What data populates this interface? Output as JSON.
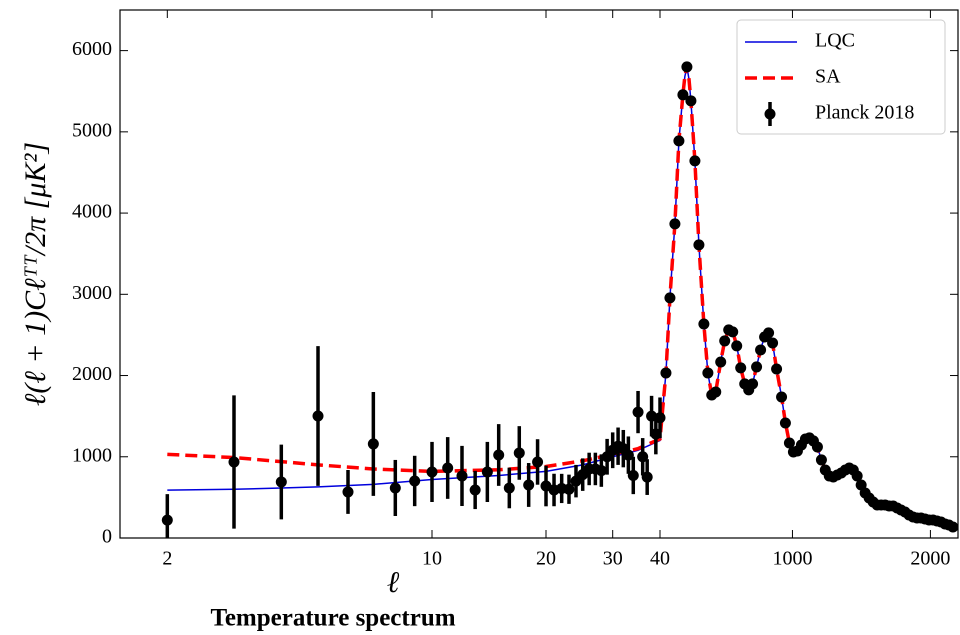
{
  "chart_data": {
    "type": "line",
    "xlabel": "ℓ",
    "ylabel": "ℓ(ℓ + 1)Cℓᵀᵀ/2π [μK²]",
    "caption": "Temperature spectrum",
    "xscale": "log-linear",
    "xbreak": 40,
    "xlim": [
      1.5,
      2200
    ],
    "xticks": [
      2,
      10,
      20,
      30,
      40,
      1000,
      2000
    ],
    "ylim": [
      0,
      6500
    ],
    "yticks": [
      0,
      1000,
      2000,
      3000,
      4000,
      5000,
      6000
    ],
    "legend": "upper right",
    "series": [
      {
        "name": "LQC",
        "color": "#0000dd",
        "style": "solid",
        "x": [
          2,
          3,
          4,
          5,
          7,
          10,
          15,
          20,
          25,
          30,
          35,
          40,
          60,
          83,
          112,
          148,
          177,
          206,
          220,
          235,
          250,
          264,
          293,
          322,
          358,
          387,
          415,
          444,
          480,
          509,
          538,
          567,
          596,
          625,
          654,
          683,
          711,
          740,
          769,
          798,
          827,
          856,
          885,
          921,
          949,
          978,
          1007,
          1036,
          1065,
          1094,
          1123,
          1152,
          1181,
          1210,
          1238
        ],
        "values": [
          590,
          600,
          615,
          630,
          660,
          720,
          770,
          820,
          900,
          1000,
          1080,
          1200,
          1600,
          2030,
          2960,
          3870,
          4890,
          5460,
          5680,
          5800,
          5650,
          5380,
          4640,
          3610,
          2630,
          2030,
          1760,
          1800,
          2170,
          2430,
          2560,
          2540,
          2370,
          2090,
          1900,
          1820,
          1900,
          2110,
          2320,
          2480,
          2540,
          2400,
          2080,
          1740,
          1420,
          1170,
          1060,
          1070,
          1150,
          1220,
          1230,
          1200,
          1120,
          960,
          840
        ]
      },
      {
        "name": "SA",
        "color": "#ff0000",
        "style": "dashed",
        "x": [
          2,
          3,
          4,
          5,
          7,
          10,
          15,
          20,
          25,
          30,
          35,
          40,
          60,
          83,
          112,
          148,
          177,
          206,
          220,
          235,
          250,
          264,
          293,
          322,
          358,
          387,
          415,
          444,
          480,
          509,
          538,
          567,
          596,
          625,
          654,
          683,
          711,
          740,
          769,
          798,
          827,
          856,
          885,
          921,
          949,
          978,
          1007,
          1036,
          1065,
          1094,
          1123,
          1152,
          1181,
          1210,
          1238
        ],
        "values": [
          1030,
          990,
          940,
          900,
          850,
          820,
          840,
          880,
          950,
          1030,
          1100,
          1220,
          1600,
          2030,
          2960,
          3870,
          4890,
          5460,
          5680,
          5800,
          5650,
          5380,
          4640,
          3610,
          2630,
          2030,
          1760,
          1800,
          2170,
          2430,
          2560,
          2540,
          2370,
          2090,
          1900,
          1820,
          1900,
          2110,
          2320,
          2480,
          2540,
          2400,
          2080,
          1740,
          1420,
          1170,
          1060,
          1070,
          1150,
          1220,
          1230,
          1200,
          1120,
          960,
          840
        ]
      },
      {
        "name": "Planck 2018",
        "color": "#000000",
        "x": [
          2,
          3,
          4,
          5,
          6,
          7,
          8,
          9,
          10,
          11,
          12,
          13,
          14,
          15,
          16,
          17,
          18,
          19,
          20,
          21,
          22,
          23,
          24,
          25,
          26,
          27,
          28,
          29,
          30,
          31,
          32,
          33,
          34,
          35,
          36,
          37,
          38,
          39,
          40,
          83,
          112,
          148,
          177,
          206,
          235,
          264,
          293,
          322,
          358,
          387,
          415,
          444,
          480,
          509,
          538,
          567,
          596,
          625,
          654,
          683,
          711,
          740,
          769,
          798,
          827,
          856,
          885,
          921,
          949,
          978,
          1007,
          1036,
          1065,
          1094,
          1123,
          1152,
          1181,
          1210,
          1238,
          1267,
          1296,
          1325,
          1354,
          1383,
          1412,
          1441,
          1469,
          1498,
          1527,
          1556,
          1585,
          1614,
          1643,
          1672,
          1701,
          1730,
          1759,
          1787,
          1816,
          1845,
          1874,
          1903,
          1932,
          1961,
          1990,
          2019,
          2048,
          2077,
          2106,
          2134,
          2163
        ],
        "values": [
          220,
          936,
          690,
          1502,
          567,
          1158,
          616,
          702,
          813,
          862,
          764,
          591,
          813,
          1022,
          616,
          1047,
          653,
          936,
          640,
          591,
          610,
          600,
          700,
          780,
          850,
          850,
          830,
          1000,
          1080,
          1130,
          1100,
          1020,
          770,
          1550,
          1000,
          750,
          1500,
          1280,
          1480,
          2032,
          2956,
          3867,
          4889,
          5456,
          5800,
          5382,
          4643,
          3608,
          2635,
          2032,
          1761,
          1798,
          2167,
          2426,
          2562,
          2537,
          2365,
          2094,
          1897,
          1823,
          1897,
          2106,
          2315,
          2475,
          2525,
          2401,
          2081,
          1736,
          1416,
          1170,
          1059,
          1071,
          1145,
          1219,
          1232,
          1195,
          1121,
          961,
          837,
          764,
          751,
          776,
          800,
          837,
          862,
          837,
          764,
          653,
          554,
          493,
          443,
          406,
          406,
          406,
          394,
          394,
          369,
          345,
          320,
          283,
          259,
          246,
          246,
          234,
          222,
          222,
          209,
          197,
          172,
          160,
          135
        ],
        "errors": [
          320,
          820,
          460,
          860,
          270,
          640,
          345,
          310,
          370,
          380,
          370,
          235,
          370,
          380,
          250,
          330,
          270,
          280,
          250,
          200,
          180,
          180,
          200,
          200,
          200,
          200,
          200,
          220,
          220,
          230,
          230,
          230,
          230,
          260,
          230,
          220,
          250,
          250,
          250,
          50,
          50,
          50,
          60,
          60,
          60,
          60,
          60,
          50,
          50,
          50,
          40,
          40,
          40,
          40,
          40,
          40,
          40,
          40,
          40,
          40,
          40,
          40,
          40,
          40,
          40,
          40,
          40,
          40,
          40,
          30,
          30,
          30,
          30,
          30,
          30,
          30,
          30,
          30,
          30,
          30,
          30,
          30,
          30,
          30,
          30,
          30,
          30,
          30,
          30,
          30,
          30,
          30,
          30,
          30,
          30,
          30,
          30,
          30,
          30,
          30,
          30,
          30,
          30,
          30,
          30,
          30,
          30,
          30,
          30,
          30,
          30
        ]
      }
    ]
  }
}
